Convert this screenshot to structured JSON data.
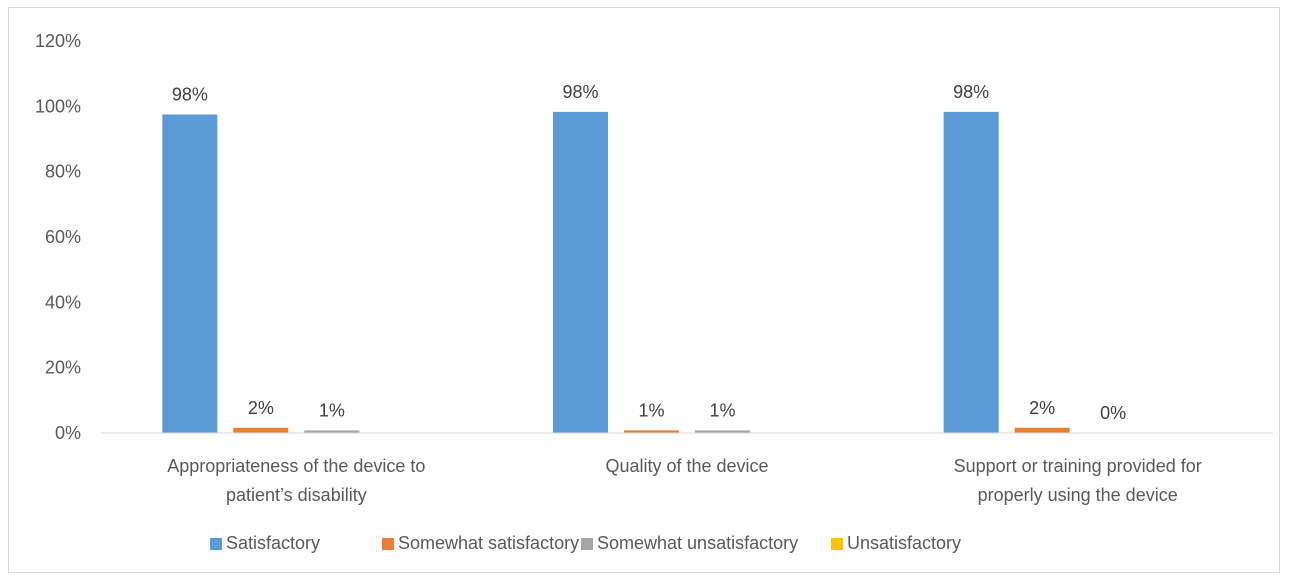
{
  "chart_data": {
    "type": "bar",
    "title": "",
    "xlabel": "",
    "ylabel": "",
    "ylim": [
      0,
      120
    ],
    "yticks": [
      "0%",
      "20%",
      "40%",
      "60%",
      "80%",
      "100%",
      "120%"
    ],
    "ytick_values": [
      0,
      20,
      40,
      60,
      80,
      100,
      120
    ],
    "grid": false,
    "legend_position": "bottom",
    "categories": [
      [
        "Appropriateness of the device to",
        "patient’s disability"
      ],
      [
        "Quality of the device"
      ],
      [
        "Support or training provided for",
        "properly using the device"
      ]
    ],
    "series": [
      {
        "name": "Satisfactory",
        "color": "#5B9BD5",
        "values": [
          97.5,
          98.3,
          98.3
        ],
        "labels": [
          "98%",
          "98%",
          "98%"
        ]
      },
      {
        "name": "Somewhat satisfactory",
        "color": "#ED7D31",
        "values": [
          1.6,
          0.8,
          1.6
        ],
        "labels": [
          "2%",
          "1%",
          "2%"
        ]
      },
      {
        "name": "Somewhat unsatisfactory",
        "color": "#A5A5A5",
        "values": [
          0.8,
          0.8,
          0.0
        ],
        "labels": [
          "1%",
          "1%",
          "0%"
        ]
      },
      {
        "name": "Unsatisfactory",
        "color": "#FFC000",
        "values": [
          0,
          0,
          0
        ],
        "labels": [
          "",
          "",
          ""
        ]
      }
    ]
  }
}
